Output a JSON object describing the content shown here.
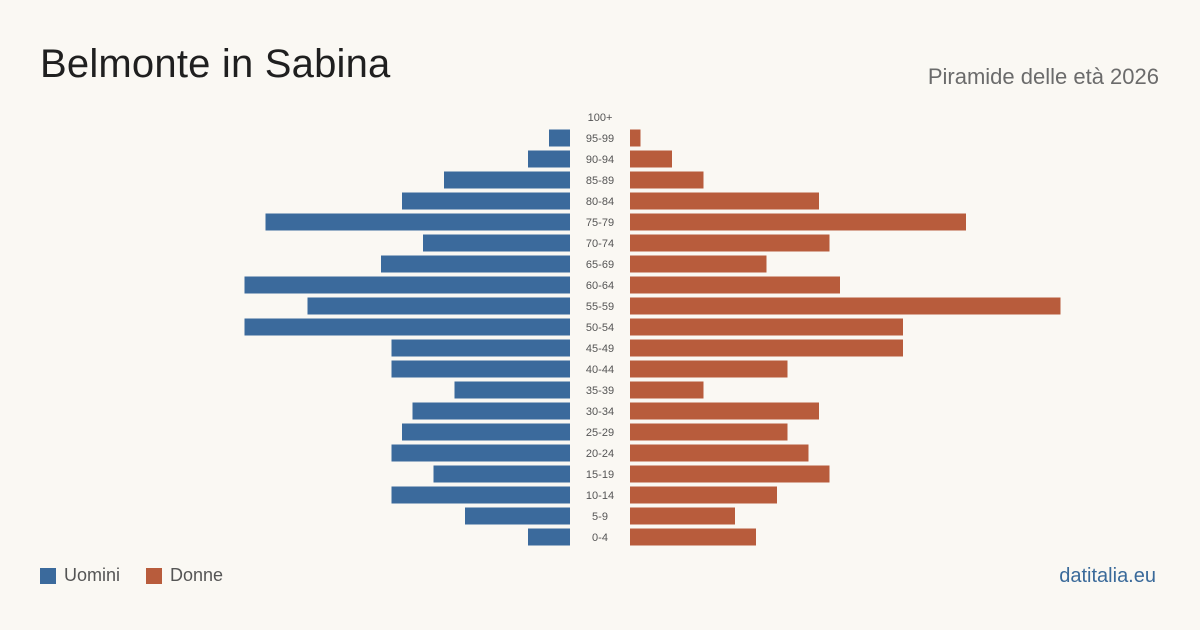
{
  "header": {
    "title": "Belmonte in Sabina",
    "subtitle": "Piramide delle età 2026"
  },
  "legend": {
    "men_label": "Uomini",
    "women_label": "Donne"
  },
  "brand": "datitalia.eu",
  "colors": {
    "men": "#3b6a9c",
    "women": "#b85c3c",
    "background": "#faf8f3"
  },
  "chart_data": {
    "type": "bar",
    "orientation": "horizontal-pyramid",
    "categories": [
      "100+",
      "95-99",
      "90-94",
      "85-89",
      "80-84",
      "75-79",
      "70-74",
      "65-69",
      "60-64",
      "55-59",
      "50-54",
      "45-49",
      "40-44",
      "35-39",
      "30-34",
      "25-29",
      "20-24",
      "15-19",
      "10-14",
      "5-9",
      "0-4"
    ],
    "series": [
      {
        "name": "Uomini",
        "values": [
          0,
          2,
          4,
          12,
          16,
          29,
          14,
          18,
          31,
          25,
          31,
          17,
          17,
          11,
          15,
          16,
          17,
          13,
          17,
          10,
          4
        ]
      },
      {
        "name": "Donne",
        "values": [
          0,
          1,
          4,
          7,
          18,
          32,
          19,
          13,
          20,
          41,
          26,
          26,
          15,
          7,
          18,
          15,
          17,
          19,
          14,
          10,
          12
        ]
      }
    ],
    "grid": false,
    "legend_position": "bottom-left"
  }
}
